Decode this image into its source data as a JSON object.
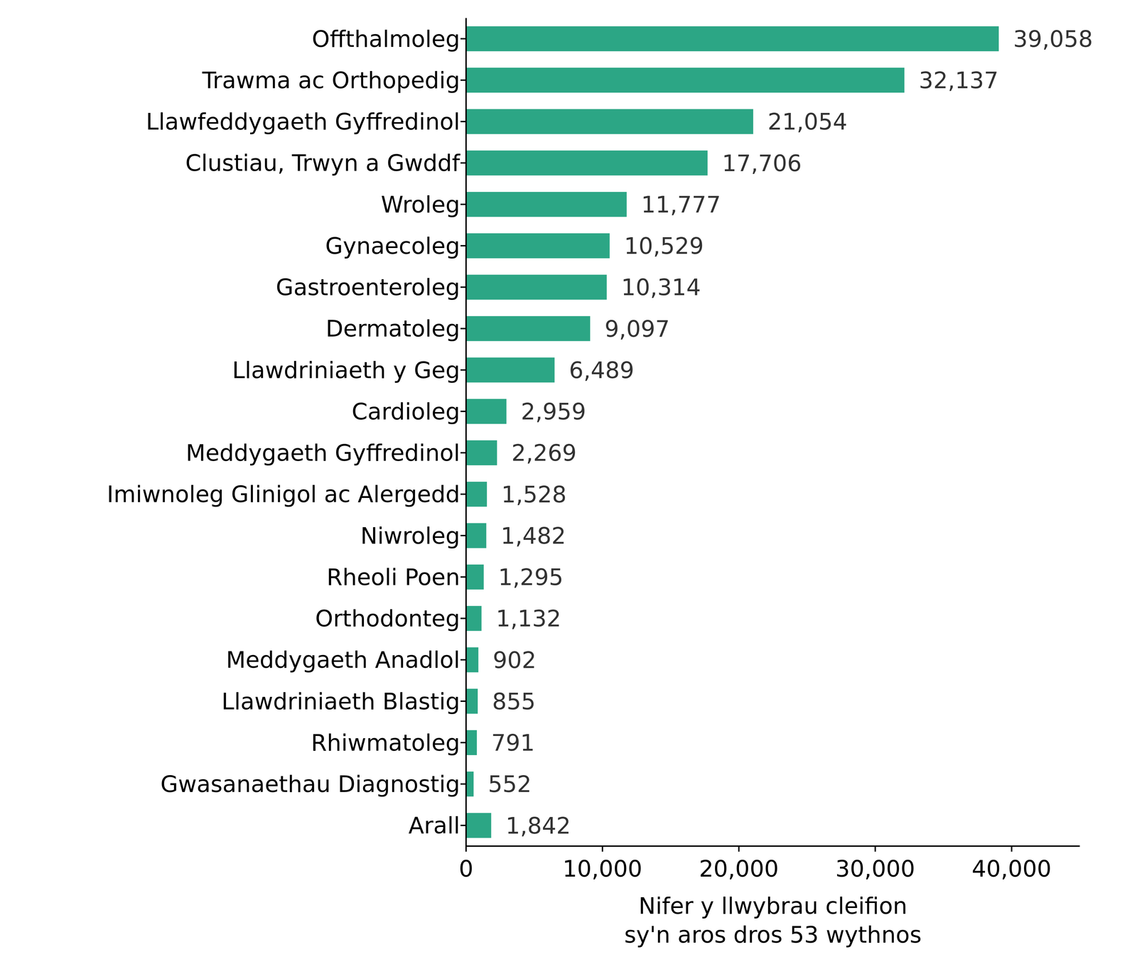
{
  "chart_data": {
    "type": "bar",
    "orientation": "horizontal",
    "x_label": "Nifer y llwybrau cleifion\nsy'n aros dros 53 wythnos",
    "categories": [
      "Offthalmoleg",
      "Trawma ac Orthopedig",
      "Llawfeddygaeth Gyffredinol",
      "Clustiau, Trwyn a Gwddf",
      "Wroleg",
      "Gynaecoleg",
      "Gastroenteroleg",
      "Dermatoleg",
      "Llawdriniaeth y Geg",
      "Cardioleg",
      "Meddygaeth Gyffredinol",
      "Imiwnoleg Glinigol ac Alergedd",
      "Niwroleg",
      "Rheoli Poen",
      "Orthodonteg",
      "Meddygaeth Anadlol",
      "Llawdriniaeth Blastig",
      "Rhiwmatoleg",
      "Gwasanaethau Diagnostig",
      "Arall"
    ],
    "values": [
      39058,
      32137,
      21054,
      17706,
      11777,
      10529,
      10314,
      9097,
      6489,
      2959,
      2269,
      1528,
      1482,
      1295,
      1132,
      902,
      855,
      791,
      552,
      1842
    ],
    "value_labels": [
      "39,058",
      "32,137",
      "21,054",
      "17,706",
      "11,777",
      "10,529",
      "10,314",
      "9,097",
      "6,489",
      "2,959",
      "2,269",
      "1,528",
      "1,482",
      "1,295",
      "1,132",
      "902",
      "855",
      "791",
      "552",
      "1,842"
    ],
    "data_labels": true,
    "color": "#2ca685",
    "xlim": [
      0,
      45000
    ],
    "xticks": [
      0,
      {
        "value": 10000,
        "label": "10,000"
      },
      {
        "value": 20000,
        "label": "20,000"
      },
      {
        "value": 30000,
        "label": "30,000"
      },
      {
        "value": 40000,
        "label": "40,000"
      }
    ],
    "grid": false
  }
}
